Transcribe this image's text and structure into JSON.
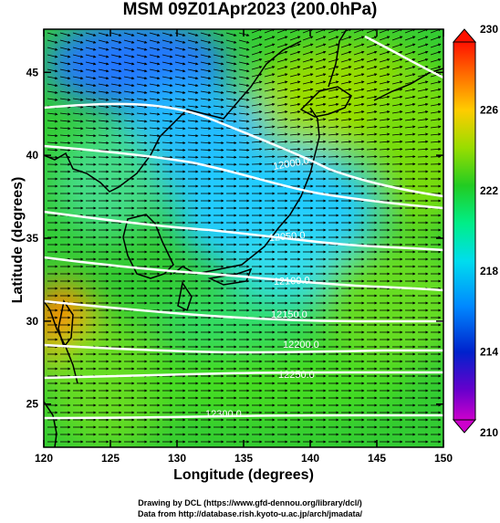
{
  "title": "MSM 09Z01Apr2023 (200.0hPa)",
  "xlabel": "Longitude (degrees)",
  "ylabel": "Latitude  (degrees)",
  "credit_line1": "Drawing by DCL (https://www.gfd-dennou.org/library/dcl/)",
  "credit_line2": "Data from http://database.rish.kyoto-u.ac.jp/arch/jmadata/",
  "map": {
    "lon_range": [
      120,
      150
    ],
    "lat_range": [
      22.4,
      47.6
    ],
    "x_ticks": [
      "120",
      "125",
      "130",
      "135",
      "140",
      "145",
      "150"
    ],
    "y_ticks": [
      "25",
      "30",
      "35",
      "40",
      "45"
    ],
    "contour_labels": [
      "12000.0",
      "12050.0",
      "12100.0",
      "12150.0",
      "12200.0",
      "12250.0",
      "12300.0"
    ],
    "colorbar": {
      "min": 210,
      "max": 230,
      "tick_labels": [
        "210",
        "214",
        "218",
        "222",
        "226",
        "230"
      ],
      "colors": [
        "#cc00cc",
        "#3300cc",
        "#0066ff",
        "#00ccff",
        "#00ff99",
        "#33dd33",
        "#aaee00",
        "#ffcc00",
        "#ff6600",
        "#ff2200"
      ]
    }
  }
}
